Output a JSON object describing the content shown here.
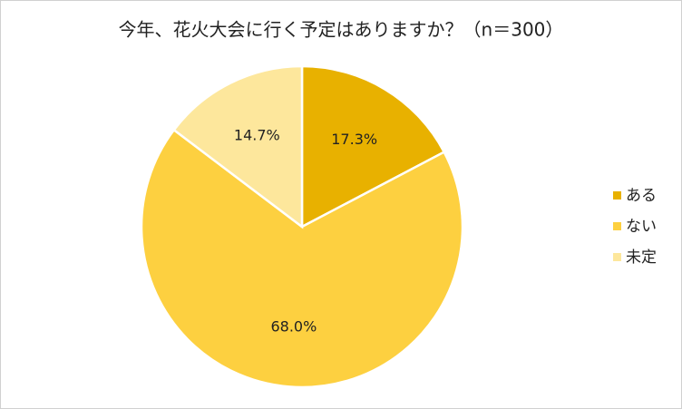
{
  "chart_data": {
    "type": "pie",
    "title": "今年、花火大会に行く予定はありますか？（n＝300）",
    "categories": [
      "ある",
      "ない",
      "未定"
    ],
    "values": [
      17.3,
      68.0,
      14.7
    ],
    "value_labels": [
      "17.3%",
      "68.0%",
      "14.7%"
    ],
    "colors": [
      "#e8b100",
      "#fdd040",
      "#fde79c"
    ],
    "legend": "right"
  }
}
